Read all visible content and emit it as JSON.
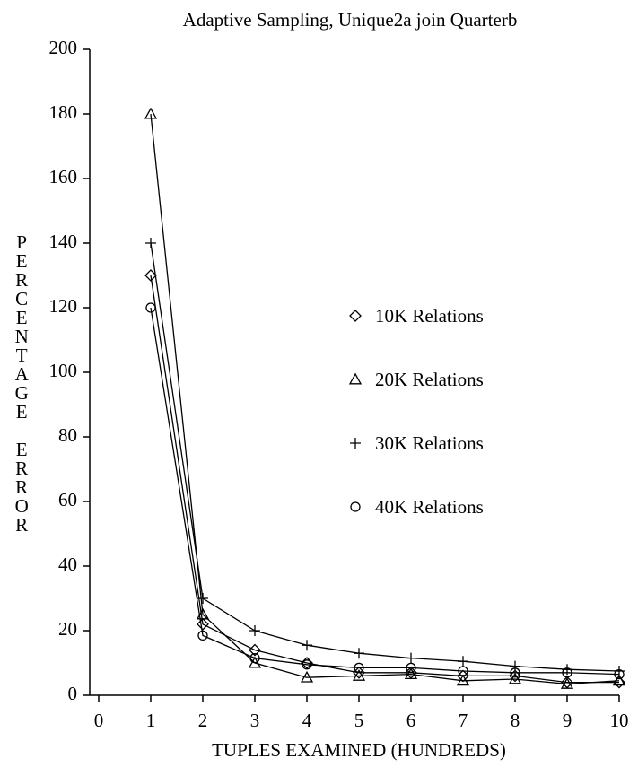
{
  "chart_data": {
    "type": "line",
    "title": "Adaptive Sampling, Unique2a join Quarterb",
    "x_label": "TUPLES EXAMINED (HUNDREDS)",
    "y_label": "PERCENTAGE ERROR",
    "x": [
      1,
      2,
      3,
      4,
      5,
      6,
      7,
      8,
      9,
      10
    ],
    "xlim": [
      0,
      10
    ],
    "xticks": [
      0,
      1,
      2,
      3,
      4,
      5,
      6,
      7,
      8,
      9,
      10
    ],
    "ylim": [
      0,
      200
    ],
    "yticks": [
      0,
      20,
      40,
      60,
      80,
      100,
      120,
      140,
      160,
      180,
      200
    ],
    "series": [
      {
        "name": "10K Relations",
        "marker": "diamond",
        "color": "#000000",
        "values": [
          130,
          22,
          14,
          10,
          7,
          7,
          6,
          6,
          4,
          4
        ]
      },
      {
        "name": "20K Relations",
        "marker": "triangle",
        "color": "#000000",
        "values": [
          180,
          25,
          10,
          5.5,
          6,
          6.5,
          4.5,
          5,
          3.5,
          4.5
        ]
      },
      {
        "name": "30K Relations",
        "marker": "plus",
        "color": "#000000",
        "values": [
          140,
          30,
          20,
          15.5,
          13,
          11.5,
          10.5,
          9,
          8,
          7.5
        ]
      },
      {
        "name": "40K Relations",
        "marker": "circle",
        "color": "#000000",
        "values": [
          120,
          18.5,
          11.5,
          9.5,
          8.5,
          8.5,
          7.5,
          7,
          7,
          6.5
        ]
      }
    ]
  }
}
